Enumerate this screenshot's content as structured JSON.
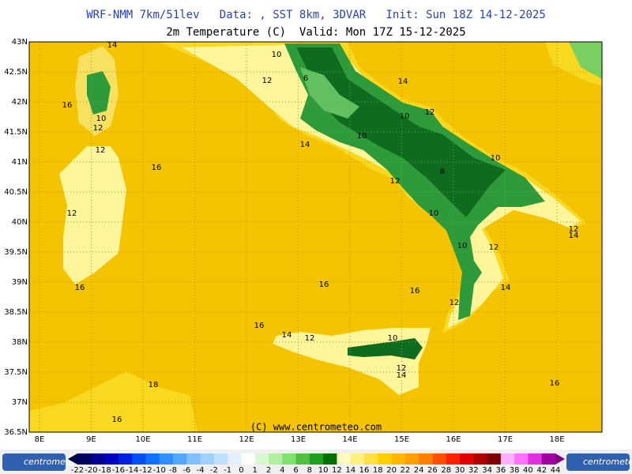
{
  "header": {
    "title": "WRF-NMM 7km/51lev   Data: , SST 8km, 3DVAR   Init: Sun 18Z 14-12-2025",
    "subtitle": "2m Temperature (C)  Valid: Mon 17Z 15-12-2025"
  },
  "map": {
    "lat_labels": [
      "43N",
      "42.5N",
      "42N",
      "41.5N",
      "41N",
      "40.5N",
      "40N",
      "39.5N",
      "39N",
      "38.5N",
      "38N",
      "37.5N",
      "37N",
      "36.5N"
    ],
    "lon_labels": [
      "8E",
      "9E",
      "10E",
      "11E",
      "12E",
      "13E",
      "14E",
      "15E",
      "16E",
      "17E",
      "18E"
    ],
    "contour_labels": [
      "10",
      "12",
      "6",
      "14",
      "10",
      "12",
      "10",
      "14",
      "8",
      "10",
      "12",
      "10",
      "10",
      "12",
      "12",
      "14",
      "14",
      "12",
      "16",
      "16",
      "16",
      "14",
      "12",
      "10",
      "12",
      "14",
      "16",
      "16",
      "12",
      "16",
      "16",
      "10",
      "12",
      "12",
      "18",
      "16",
      "14"
    ],
    "copyright": "(C) www.centrometeo.com"
  },
  "legend": {
    "labels": [
      "-22",
      "-20",
      "-18",
      "-16",
      "-14",
      "-12",
      "-10",
      "-8",
      "-6",
      "-4",
      "-2",
      "-1",
      "0",
      "1",
      "2",
      "4",
      "6",
      "8",
      "10",
      "12",
      "14",
      "16",
      "18",
      "20",
      "22",
      "24",
      "26",
      "28",
      "30",
      "32",
      "34",
      "36",
      "38",
      "40",
      "42",
      "44"
    ],
    "logo": "centrometeo"
  }
}
